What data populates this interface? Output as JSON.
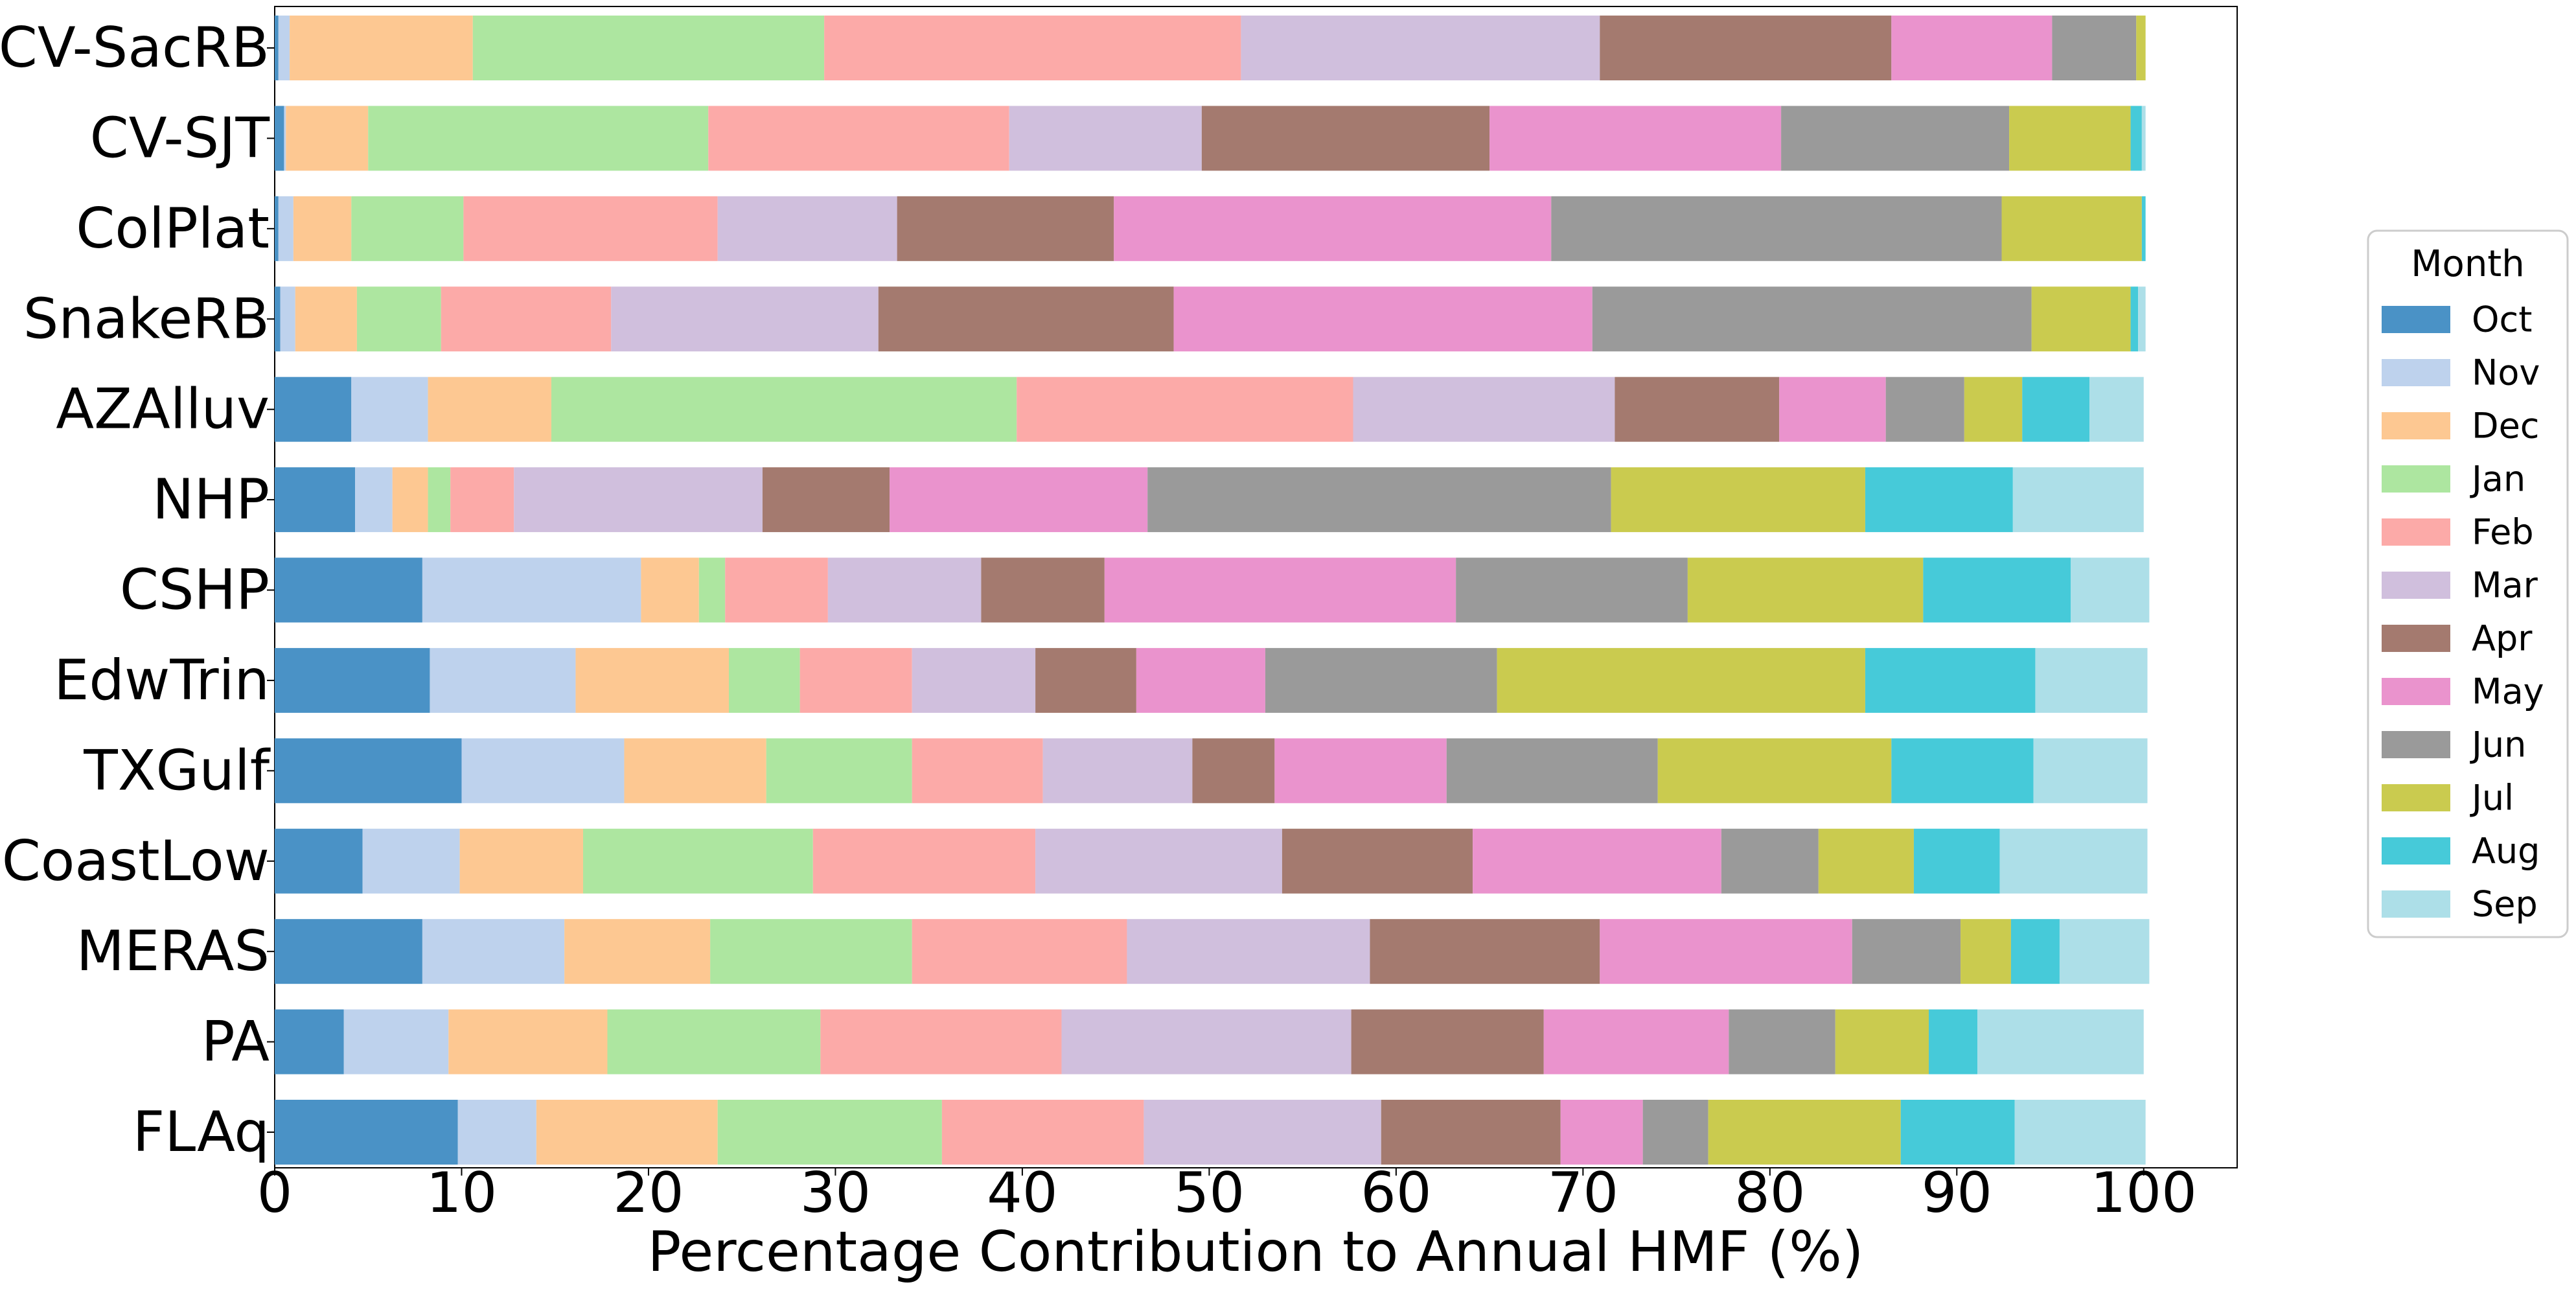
{
  "chart_data": {
    "type": "bar",
    "orientation": "horizontal",
    "stacked": true,
    "title": "",
    "xlabel": "Percentage Contribution to Annual HMF (%)",
    "ylabel": "",
    "xlim": [
      0,
      105
    ],
    "xticks": [
      0,
      10,
      20,
      30,
      40,
      50,
      60,
      70,
      80,
      90,
      100
    ],
    "grid": false,
    "legend": {
      "title": "Month",
      "placement": "right"
    },
    "categories": [
      "CV-SacRB",
      "CV-SJT",
      "ColPlat",
      "SnakeRB",
      "AZAlluv",
      "NHP",
      "CSHP",
      "EdwTrin",
      "TXGulf",
      "CoastLow",
      "MERAS",
      "PA",
      "FLAq"
    ],
    "series": [
      {
        "name": "Oct",
        "color": "#4a92c6",
        "values": [
          0.2,
          0.5,
          0.2,
          0.3,
          4.1,
          4.3,
          7.9,
          8.3,
          10.0,
          4.7,
          7.9,
          3.7,
          9.8
        ]
      },
      {
        "name": "Nov",
        "color": "#bed2ed",
        "values": [
          0.6,
          0.1,
          0.8,
          0.8,
          4.1,
          2.0,
          11.7,
          7.8,
          8.7,
          5.2,
          7.6,
          5.6,
          4.2
        ]
      },
      {
        "name": "Dec",
        "color": "#fdc892",
        "values": [
          9.8,
          4.4,
          3.1,
          3.3,
          6.6,
          1.9,
          3.1,
          8.2,
          7.6,
          6.6,
          7.8,
          8.5,
          9.7
        ]
      },
      {
        "name": "Jan",
        "color": "#ade6a0",
        "values": [
          18.8,
          18.2,
          6.0,
          4.5,
          24.9,
          1.2,
          1.4,
          3.8,
          7.8,
          12.3,
          10.8,
          11.4,
          12.0
        ]
      },
      {
        "name": "Feb",
        "color": "#fcaaa8",
        "values": [
          22.3,
          16.1,
          13.6,
          9.1,
          18.0,
          3.4,
          5.5,
          6.0,
          7.0,
          11.9,
          11.5,
          12.9,
          10.8
        ]
      },
      {
        "name": "Mar",
        "color": "#d0bfdd",
        "values": [
          19.2,
          10.3,
          9.6,
          14.3,
          14.0,
          13.3,
          8.2,
          6.6,
          8.0,
          13.2,
          13.0,
          15.5,
          12.7
        ]
      },
      {
        "name": "Apr",
        "color": "#a47a6f",
        "values": [
          15.6,
          15.4,
          11.6,
          15.8,
          8.8,
          6.8,
          6.6,
          5.4,
          4.4,
          10.2,
          12.3,
          10.3,
          9.6
        ]
      },
      {
        "name": "May",
        "color": "#ea93cd",
        "values": [
          8.6,
          15.6,
          23.4,
          22.4,
          5.7,
          13.8,
          18.8,
          6.9,
          9.2,
          13.3,
          13.5,
          9.9,
          4.4
        ]
      },
      {
        "name": "Jun",
        "color": "#9a9a9a",
        "values": [
          4.5,
          12.2,
          24.1,
          23.5,
          4.2,
          24.8,
          12.4,
          12.4,
          11.3,
          5.2,
          5.8,
          5.7,
          3.5
        ]
      },
      {
        "name": "Jul",
        "color": "#cacb4f",
        "values": [
          0.5,
          6.5,
          7.5,
          5.3,
          3.1,
          13.6,
          12.6,
          19.7,
          12.5,
          5.1,
          2.7,
          5.0,
          10.3
        ]
      },
      {
        "name": "Aug",
        "color": "#46cad9",
        "values": [
          0.0,
          0.6,
          0.2,
          0.4,
          3.6,
          7.9,
          7.9,
          9.1,
          7.6,
          4.6,
          2.6,
          2.6,
          6.1
        ]
      },
      {
        "name": "Sep",
        "color": "#addfe8",
        "values": [
          0.0,
          0.2,
          0.0,
          0.4,
          2.9,
          7.0,
          4.2,
          6.0,
          6.1,
          7.9,
          4.8,
          8.9,
          7.0
        ]
      }
    ]
  }
}
